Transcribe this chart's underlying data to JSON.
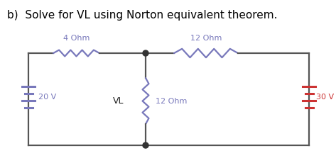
{
  "title": "b)  Solve for VL using Norton equivalent theorem.",
  "title_fontsize": 11,
  "title_color": "#000000",
  "background_color": "#ffffff",
  "circuit": {
    "left_voltage": "20 V",
    "left_voltage_color": "#7878BB",
    "right_voltage": "30 V",
    "right_voltage_color": "#CC3333",
    "resistor1_label": "4 Ohm",
    "resistor1_color": "#7878BB",
    "resistor2_label": "12 Ohm",
    "resistor2_color": "#7878BB",
    "resistor3_label": "12 Ohm",
    "resistor3_color": "#7878BB",
    "vl_label": "VL",
    "vl_color": "#222222",
    "node_color": "#333333",
    "wire_color": "#555555",
    "wire_lw": 1.6
  }
}
